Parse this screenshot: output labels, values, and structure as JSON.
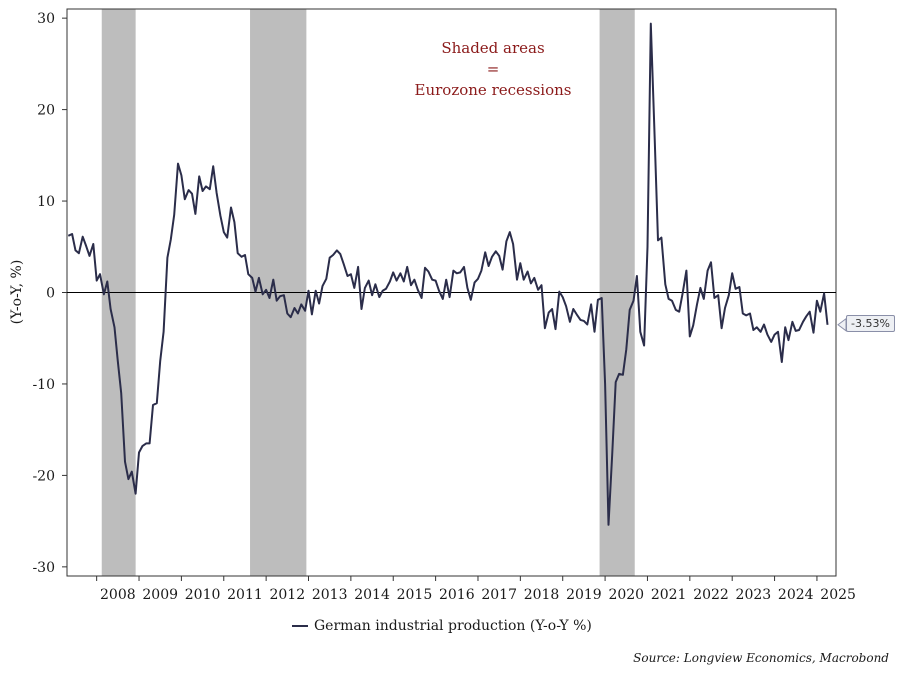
{
  "chart_data": {
    "type": "line",
    "title": "",
    "ylabel": "(Y-o-Y, %)",
    "xlabel": "",
    "ylim": [
      -31,
      31
    ],
    "xlim": [
      2007.3,
      2025.45
    ],
    "yticks": [
      30,
      20,
      10,
      0,
      -10,
      -20,
      -30
    ],
    "ytick_labels": [
      "30",
      "20",
      "10",
      "0",
      "-10",
      "-20",
      "-30"
    ],
    "xtick_labels": [
      "2008",
      "2009",
      "2010",
      "2011",
      "2012",
      "2013",
      "2014",
      "2015",
      "2016",
      "2017",
      "2018",
      "2019",
      "2020",
      "2021",
      "2022",
      "2023",
      "2024",
      "2025"
    ],
    "recessions": [
      [
        2008.12,
        2008.92
      ],
      [
        2011.62,
        2012.95
      ],
      [
        2019.87,
        2020.7
      ]
    ],
    "annotation": [
      "Shaded areas",
      "=",
      "Eurozone recessions"
    ],
    "last_value_label": "-3.53%",
    "series": [
      {
        "name": "German industrial production (Y-o-Y %)",
        "color": "#2b2d4a",
        "points": [
          [
            2007.33,
            6.2
          ],
          [
            2007.42,
            6.4
          ],
          [
            2007.5,
            4.6
          ],
          [
            2007.58,
            4.3
          ],
          [
            2007.67,
            6.1
          ],
          [
            2007.75,
            5.1
          ],
          [
            2007.83,
            4.0
          ],
          [
            2007.92,
            5.3
          ],
          [
            2008.0,
            1.3
          ],
          [
            2008.08,
            2.0
          ],
          [
            2008.17,
            -0.2
          ],
          [
            2008.25,
            1.2
          ],
          [
            2008.33,
            -1.8
          ],
          [
            2008.42,
            -3.8
          ],
          [
            2008.5,
            -7.5
          ],
          [
            2008.58,
            -11.0
          ],
          [
            2008.67,
            -18.5
          ],
          [
            2008.75,
            -20.4
          ],
          [
            2008.83,
            -19.6
          ],
          [
            2008.92,
            -22.0
          ],
          [
            2009.0,
            -17.5
          ],
          [
            2009.08,
            -16.8
          ],
          [
            2009.17,
            -16.5
          ],
          [
            2009.25,
            -16.5
          ],
          [
            2009.33,
            -12.3
          ],
          [
            2009.42,
            -12.1
          ],
          [
            2009.5,
            -7.5
          ],
          [
            2009.58,
            -4.3
          ],
          [
            2009.67,
            3.8
          ],
          [
            2009.75,
            5.8
          ],
          [
            2009.83,
            8.5
          ],
          [
            2009.92,
            14.1
          ],
          [
            2010.0,
            12.8
          ],
          [
            2010.08,
            10.2
          ],
          [
            2010.17,
            11.2
          ],
          [
            2010.25,
            10.8
          ],
          [
            2010.33,
            8.6
          ],
          [
            2010.42,
            12.7
          ],
          [
            2010.5,
            11.1
          ],
          [
            2010.58,
            11.6
          ],
          [
            2010.67,
            11.3
          ],
          [
            2010.75,
            13.8
          ],
          [
            2010.83,
            10.9
          ],
          [
            2010.92,
            8.4
          ],
          [
            2011.0,
            6.6
          ],
          [
            2011.08,
            6.0
          ],
          [
            2011.17,
            9.3
          ],
          [
            2011.25,
            7.7
          ],
          [
            2011.33,
            4.3
          ],
          [
            2011.42,
            3.9
          ],
          [
            2011.5,
            4.1
          ],
          [
            2011.58,
            2.0
          ],
          [
            2011.67,
            1.6
          ],
          [
            2011.75,
            0.1
          ],
          [
            2011.83,
            1.6
          ],
          [
            2011.92,
            -0.2
          ],
          [
            2012.0,
            0.3
          ],
          [
            2012.08,
            -0.6
          ],
          [
            2012.17,
            1.4
          ],
          [
            2012.25,
            -0.9
          ],
          [
            2012.33,
            -0.4
          ],
          [
            2012.42,
            -0.3
          ],
          [
            2012.5,
            -2.3
          ],
          [
            2012.58,
            -2.7
          ],
          [
            2012.67,
            -1.7
          ],
          [
            2012.75,
            -2.3
          ],
          [
            2012.83,
            -1.3
          ],
          [
            2012.92,
            -2.0
          ],
          [
            2013.0,
            0.2
          ],
          [
            2013.08,
            -2.4
          ],
          [
            2013.17,
            0.2
          ],
          [
            2013.25,
            -1.2
          ],
          [
            2013.33,
            0.7
          ],
          [
            2013.42,
            1.5
          ],
          [
            2013.5,
            3.8
          ],
          [
            2013.58,
            4.1
          ],
          [
            2013.67,
            4.6
          ],
          [
            2013.75,
            4.2
          ],
          [
            2013.83,
            3.1
          ],
          [
            2013.92,
            1.8
          ],
          [
            2014.0,
            2.0
          ],
          [
            2014.08,
            0.5
          ],
          [
            2014.17,
            2.8
          ],
          [
            2014.25,
            -1.8
          ],
          [
            2014.33,
            0.5
          ],
          [
            2014.42,
            1.3
          ],
          [
            2014.5,
            -0.3
          ],
          [
            2014.58,
            0.9
          ],
          [
            2014.67,
            -0.5
          ],
          [
            2014.75,
            0.2
          ],
          [
            2014.83,
            0.4
          ],
          [
            2014.92,
            1.2
          ],
          [
            2015.0,
            2.2
          ],
          [
            2015.08,
            1.3
          ],
          [
            2015.17,
            2.1
          ],
          [
            2015.25,
            1.2
          ],
          [
            2015.33,
            2.8
          ],
          [
            2015.42,
            0.8
          ],
          [
            2015.5,
            1.4
          ],
          [
            2015.58,
            0.3
          ],
          [
            2015.67,
            -0.6
          ],
          [
            2015.75,
            2.7
          ],
          [
            2015.83,
            2.3
          ],
          [
            2015.92,
            1.4
          ],
          [
            2016.0,
            1.3
          ],
          [
            2016.08,
            0.2
          ],
          [
            2016.17,
            -0.7
          ],
          [
            2016.25,
            1.4
          ],
          [
            2016.33,
            -0.5
          ],
          [
            2016.42,
            2.4
          ],
          [
            2016.5,
            2.1
          ],
          [
            2016.58,
            2.2
          ],
          [
            2016.67,
            2.8
          ],
          [
            2016.75,
            0.5
          ],
          [
            2016.83,
            -0.8
          ],
          [
            2016.92,
            1.1
          ],
          [
            2017.0,
            1.5
          ],
          [
            2017.08,
            2.4
          ],
          [
            2017.17,
            4.4
          ],
          [
            2017.25,
            2.9
          ],
          [
            2017.33,
            3.9
          ],
          [
            2017.42,
            4.5
          ],
          [
            2017.5,
            4.0
          ],
          [
            2017.58,
            2.5
          ],
          [
            2017.67,
            5.6
          ],
          [
            2017.75,
            6.6
          ],
          [
            2017.83,
            5.3
          ],
          [
            2017.92,
            1.4
          ],
          [
            2018.0,
            3.2
          ],
          [
            2018.08,
            1.4
          ],
          [
            2018.17,
            2.3
          ],
          [
            2018.25,
            1.0
          ],
          [
            2018.33,
            1.6
          ],
          [
            2018.42,
            0.3
          ],
          [
            2018.5,
            0.8
          ],
          [
            2018.58,
            -3.9
          ],
          [
            2018.67,
            -2.2
          ],
          [
            2018.75,
            -1.8
          ],
          [
            2018.83,
            -4.0
          ],
          [
            2018.92,
            0.1
          ],
          [
            2019.0,
            -0.5
          ],
          [
            2019.08,
            -1.5
          ],
          [
            2019.17,
            -3.2
          ],
          [
            2019.25,
            -1.8
          ],
          [
            2019.33,
            -2.4
          ],
          [
            2019.42,
            -3.0
          ],
          [
            2019.5,
            -3.1
          ],
          [
            2019.58,
            -3.5
          ],
          [
            2019.67,
            -1.3
          ],
          [
            2019.75,
            -4.3
          ],
          [
            2019.83,
            -0.8
          ],
          [
            2019.92,
            -0.6
          ],
          [
            2020.0,
            -10.0
          ],
          [
            2020.08,
            -25.4
          ],
          [
            2020.17,
            -17.5
          ],
          [
            2020.25,
            -9.8
          ],
          [
            2020.33,
            -8.9
          ],
          [
            2020.42,
            -9.0
          ],
          [
            2020.5,
            -6.2
          ],
          [
            2020.58,
            -1.9
          ],
          [
            2020.67,
            -0.9
          ],
          [
            2020.75,
            1.8
          ],
          [
            2020.83,
            -4.3
          ],
          [
            2020.92,
            -5.8
          ],
          [
            2021.0,
            5.0
          ],
          [
            2021.08,
            29.4
          ],
          [
            2021.17,
            16.8
          ],
          [
            2021.25,
            5.7
          ],
          [
            2021.33,
            6.0
          ],
          [
            2021.42,
            0.9
          ],
          [
            2021.5,
            -0.7
          ],
          [
            2021.58,
            -0.9
          ],
          [
            2021.67,
            -1.9
          ],
          [
            2021.75,
            -2.1
          ],
          [
            2021.83,
            -0.1
          ],
          [
            2021.92,
            2.4
          ],
          [
            2022.0,
            -4.8
          ],
          [
            2022.08,
            -3.6
          ],
          [
            2022.17,
            -1.3
          ],
          [
            2022.25,
            0.5
          ],
          [
            2022.33,
            -0.7
          ],
          [
            2022.42,
            2.4
          ],
          [
            2022.5,
            3.3
          ],
          [
            2022.58,
            -0.6
          ],
          [
            2022.67,
            -0.3
          ],
          [
            2022.75,
            -3.9
          ],
          [
            2022.83,
            -1.7
          ],
          [
            2022.92,
            -0.3
          ],
          [
            2023.0,
            2.1
          ],
          [
            2023.08,
            0.4
          ],
          [
            2023.17,
            0.6
          ],
          [
            2023.25,
            -2.3
          ],
          [
            2023.33,
            -2.5
          ],
          [
            2023.42,
            -2.3
          ],
          [
            2023.5,
            -4.1
          ],
          [
            2023.58,
            -3.8
          ],
          [
            2023.67,
            -4.3
          ],
          [
            2023.75,
            -3.5
          ],
          [
            2023.83,
            -4.6
          ],
          [
            2023.92,
            -5.4
          ],
          [
            2024.0,
            -4.6
          ],
          [
            2024.08,
            -4.3
          ],
          [
            2024.17,
            -7.6
          ],
          [
            2024.25,
            -3.8
          ],
          [
            2024.33,
            -5.2
          ],
          [
            2024.42,
            -3.2
          ],
          [
            2024.5,
            -4.2
          ],
          [
            2024.58,
            -4.1
          ],
          [
            2024.67,
            -3.2
          ],
          [
            2024.75,
            -2.6
          ],
          [
            2024.83,
            -2.1
          ],
          [
            2024.92,
            -4.4
          ],
          [
            2025.0,
            -0.9
          ],
          [
            2025.08,
            -2.1
          ],
          [
            2025.17,
            -0.1
          ],
          [
            2025.25,
            -3.53
          ]
        ]
      }
    ]
  },
  "legend": {
    "label": "German industrial production (Y-o-Y %)"
  },
  "source": "Source: Longview Economics, Macrobond"
}
